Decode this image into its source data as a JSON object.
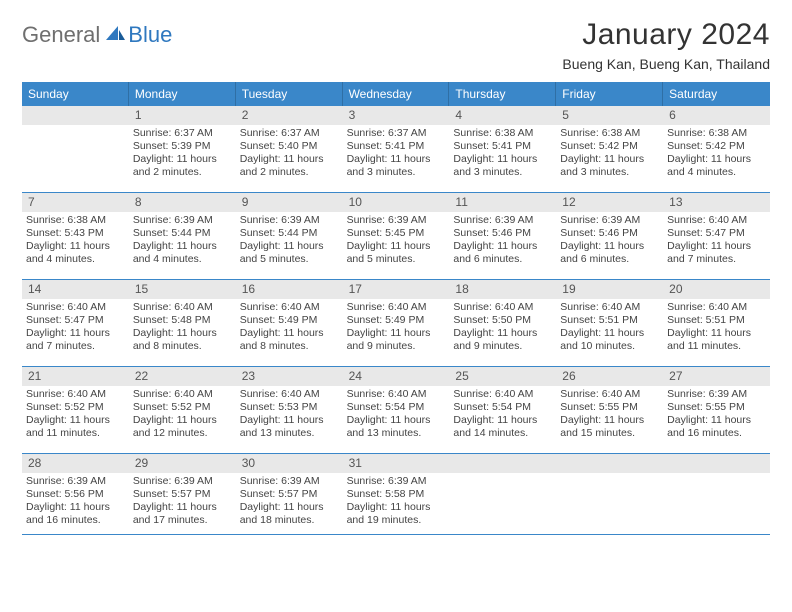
{
  "brand": {
    "part1": "General",
    "part2": "Blue"
  },
  "title": "January 2024",
  "location": "Bueng Kan, Bueng Kan, Thailand",
  "colors": {
    "header_bg": "#3a87c9",
    "header_text": "#ffffff",
    "num_bg": "#e8e8e8",
    "rule": "#3a87c9",
    "logo_gray": "#6f6f6f",
    "logo_blue": "#2f78bf"
  },
  "days_of_week": [
    "Sunday",
    "Monday",
    "Tuesday",
    "Wednesday",
    "Thursday",
    "Friday",
    "Saturday"
  ],
  "weeks": [
    [
      {
        "blank": true
      },
      {
        "n": "1",
        "sr": "Sunrise: 6:37 AM",
        "ss": "Sunset: 5:39 PM",
        "dl": "Daylight: 11 hours and 2 minutes."
      },
      {
        "n": "2",
        "sr": "Sunrise: 6:37 AM",
        "ss": "Sunset: 5:40 PM",
        "dl": "Daylight: 11 hours and 2 minutes."
      },
      {
        "n": "3",
        "sr": "Sunrise: 6:37 AM",
        "ss": "Sunset: 5:41 PM",
        "dl": "Daylight: 11 hours and 3 minutes."
      },
      {
        "n": "4",
        "sr": "Sunrise: 6:38 AM",
        "ss": "Sunset: 5:41 PM",
        "dl": "Daylight: 11 hours and 3 minutes."
      },
      {
        "n": "5",
        "sr": "Sunrise: 6:38 AM",
        "ss": "Sunset: 5:42 PM",
        "dl": "Daylight: 11 hours and 3 minutes."
      },
      {
        "n": "6",
        "sr": "Sunrise: 6:38 AM",
        "ss": "Sunset: 5:42 PM",
        "dl": "Daylight: 11 hours and 4 minutes."
      }
    ],
    [
      {
        "n": "7",
        "sr": "Sunrise: 6:38 AM",
        "ss": "Sunset: 5:43 PM",
        "dl": "Daylight: 11 hours and 4 minutes."
      },
      {
        "n": "8",
        "sr": "Sunrise: 6:39 AM",
        "ss": "Sunset: 5:44 PM",
        "dl": "Daylight: 11 hours and 4 minutes."
      },
      {
        "n": "9",
        "sr": "Sunrise: 6:39 AM",
        "ss": "Sunset: 5:44 PM",
        "dl": "Daylight: 11 hours and 5 minutes."
      },
      {
        "n": "10",
        "sr": "Sunrise: 6:39 AM",
        "ss": "Sunset: 5:45 PM",
        "dl": "Daylight: 11 hours and 5 minutes."
      },
      {
        "n": "11",
        "sr": "Sunrise: 6:39 AM",
        "ss": "Sunset: 5:46 PM",
        "dl": "Daylight: 11 hours and 6 minutes."
      },
      {
        "n": "12",
        "sr": "Sunrise: 6:39 AM",
        "ss": "Sunset: 5:46 PM",
        "dl": "Daylight: 11 hours and 6 minutes."
      },
      {
        "n": "13",
        "sr": "Sunrise: 6:40 AM",
        "ss": "Sunset: 5:47 PM",
        "dl": "Daylight: 11 hours and 7 minutes."
      }
    ],
    [
      {
        "n": "14",
        "sr": "Sunrise: 6:40 AM",
        "ss": "Sunset: 5:47 PM",
        "dl": "Daylight: 11 hours and 7 minutes."
      },
      {
        "n": "15",
        "sr": "Sunrise: 6:40 AM",
        "ss": "Sunset: 5:48 PM",
        "dl": "Daylight: 11 hours and 8 minutes."
      },
      {
        "n": "16",
        "sr": "Sunrise: 6:40 AM",
        "ss": "Sunset: 5:49 PM",
        "dl": "Daylight: 11 hours and 8 minutes."
      },
      {
        "n": "17",
        "sr": "Sunrise: 6:40 AM",
        "ss": "Sunset: 5:49 PM",
        "dl": "Daylight: 11 hours and 9 minutes."
      },
      {
        "n": "18",
        "sr": "Sunrise: 6:40 AM",
        "ss": "Sunset: 5:50 PM",
        "dl": "Daylight: 11 hours and 9 minutes."
      },
      {
        "n": "19",
        "sr": "Sunrise: 6:40 AM",
        "ss": "Sunset: 5:51 PM",
        "dl": "Daylight: 11 hours and 10 minutes."
      },
      {
        "n": "20",
        "sr": "Sunrise: 6:40 AM",
        "ss": "Sunset: 5:51 PM",
        "dl": "Daylight: 11 hours and 11 minutes."
      }
    ],
    [
      {
        "n": "21",
        "sr": "Sunrise: 6:40 AM",
        "ss": "Sunset: 5:52 PM",
        "dl": "Daylight: 11 hours and 11 minutes."
      },
      {
        "n": "22",
        "sr": "Sunrise: 6:40 AM",
        "ss": "Sunset: 5:52 PM",
        "dl": "Daylight: 11 hours and 12 minutes."
      },
      {
        "n": "23",
        "sr": "Sunrise: 6:40 AM",
        "ss": "Sunset: 5:53 PM",
        "dl": "Daylight: 11 hours and 13 minutes."
      },
      {
        "n": "24",
        "sr": "Sunrise: 6:40 AM",
        "ss": "Sunset: 5:54 PM",
        "dl": "Daylight: 11 hours and 13 minutes."
      },
      {
        "n": "25",
        "sr": "Sunrise: 6:40 AM",
        "ss": "Sunset: 5:54 PM",
        "dl": "Daylight: 11 hours and 14 minutes."
      },
      {
        "n": "26",
        "sr": "Sunrise: 6:40 AM",
        "ss": "Sunset: 5:55 PM",
        "dl": "Daylight: 11 hours and 15 minutes."
      },
      {
        "n": "27",
        "sr": "Sunrise: 6:39 AM",
        "ss": "Sunset: 5:55 PM",
        "dl": "Daylight: 11 hours and 16 minutes."
      }
    ],
    [
      {
        "n": "28",
        "sr": "Sunrise: 6:39 AM",
        "ss": "Sunset: 5:56 PM",
        "dl": "Daylight: 11 hours and 16 minutes."
      },
      {
        "n": "29",
        "sr": "Sunrise: 6:39 AM",
        "ss": "Sunset: 5:57 PM",
        "dl": "Daylight: 11 hours and 17 minutes."
      },
      {
        "n": "30",
        "sr": "Sunrise: 6:39 AM",
        "ss": "Sunset: 5:57 PM",
        "dl": "Daylight: 11 hours and 18 minutes."
      },
      {
        "n": "31",
        "sr": "Sunrise: 6:39 AM",
        "ss": "Sunset: 5:58 PM",
        "dl": "Daylight: 11 hours and 19 minutes."
      },
      {
        "blank": true
      },
      {
        "blank": true
      },
      {
        "blank": true
      }
    ]
  ]
}
